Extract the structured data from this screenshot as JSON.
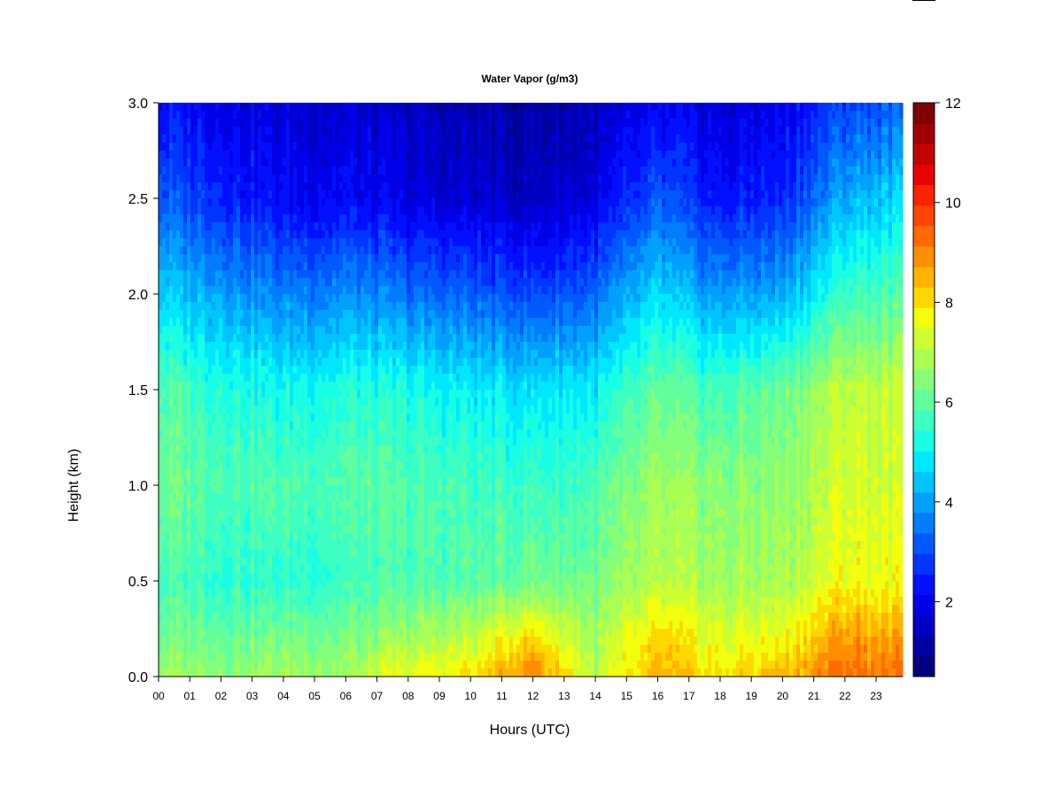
{
  "chart_data": {
    "type": "heatmap",
    "title": "Water Vapor (g/m3)",
    "xlabel": "Hours (UTC)",
    "ylabel": "Height (km)",
    "x_ticks": [
      "00",
      "01",
      "02",
      "03",
      "04",
      "05",
      "06",
      "07",
      "08",
      "09",
      "10",
      "11",
      "12",
      "13",
      "14",
      "15",
      "16",
      "17",
      "18",
      "19",
      "20",
      "21",
      "22",
      "23"
    ],
    "y_ticks": [
      "0.0",
      "0.5",
      "1.0",
      "1.5",
      "2.0",
      "2.5",
      "3.0"
    ],
    "xlim": [
      0,
      24
    ],
    "ylim": [
      0,
      3.0
    ],
    "colorbar": {
      "range": [
        0.5,
        12
      ],
      "tick_labels": [
        "2",
        "4",
        "6",
        "8",
        "10",
        "12"
      ],
      "tick_values": [
        2,
        4,
        6,
        8,
        10,
        12
      ],
      "levels": [
        0.5,
        1.0,
        1.5,
        2.0,
        2.5,
        3.0,
        3.5,
        4.0,
        4.5,
        5.0,
        5.5,
        6.0,
        6.5,
        7.0,
        7.5,
        8.0,
        8.5,
        9.0,
        9.5,
        10.0,
        10.5,
        11.0,
        11.5,
        12.0
      ],
      "colors": [
        "#00007F",
        "#0000A0",
        "#0000C4",
        "#0000E8",
        "#0010FF",
        "#0034FF",
        "#0058FF",
        "#007CFF",
        "#00A0FF",
        "#00C4FF",
        "#00E8FF",
        "#18FFE6",
        "#3DFFC2",
        "#61FF9E",
        "#85FF7A",
        "#AAFF55",
        "#CEFF31",
        "#F2FF0D",
        "#FFD800",
        "#FFB400",
        "#FF8F00",
        "#FF6B00",
        "#FF4600",
        "#FF2200",
        "#E80000",
        "#C40000",
        "#A00000",
        "#7F0000"
      ]
    },
    "profiles_km": [
      {
        "hour": 0,
        "h_km": [
          0.0,
          0.15,
          0.5,
          1.0,
          1.5,
          2.0,
          2.5,
          3.0
        ],
        "value": [
          7.6,
          7.1,
          6.5,
          7.0,
          6.6,
          5.0,
          3.3,
          2.3
        ]
      },
      {
        "hour": 2,
        "h_km": [
          0.0,
          0.15,
          0.5,
          1.0,
          1.5,
          2.0,
          2.5,
          3.0
        ],
        "value": [
          7.5,
          7.1,
          6.1,
          6.6,
          6.0,
          4.4,
          2.6,
          1.8
        ]
      },
      {
        "hour": 4,
        "h_km": [
          0.0,
          0.15,
          0.5,
          1.0,
          1.5,
          2.0,
          2.5,
          3.0
        ],
        "value": [
          7.7,
          7.2,
          6.0,
          6.5,
          5.6,
          3.8,
          2.0,
          1.5
        ]
      },
      {
        "hour": 6,
        "h_km": [
          0.0,
          0.15,
          0.5,
          1.0,
          1.5,
          2.0,
          2.5,
          3.0
        ],
        "value": [
          7.7,
          7.2,
          6.2,
          6.6,
          5.9,
          4.0,
          2.0,
          1.4
        ]
      },
      {
        "hour": 8,
        "h_km": [
          0.0,
          0.15,
          0.5,
          1.0,
          1.5,
          2.0,
          2.5,
          3.0
        ],
        "value": [
          8.6,
          7.9,
          6.4,
          6.5,
          5.7,
          3.6,
          1.6,
          1.2
        ]
      },
      {
        "hour": 10,
        "h_km": [
          0.0,
          0.15,
          0.5,
          1.0,
          1.5,
          2.0,
          2.5,
          3.0
        ],
        "value": [
          9.1,
          8.3,
          6.6,
          6.3,
          5.4,
          3.3,
          1.4,
          0.9
        ]
      },
      {
        "hour": 12,
        "h_km": [
          0.0,
          0.15,
          0.5,
          1.0,
          1.5,
          2.0,
          2.5,
          3.0
        ],
        "value": [
          10.6,
          9.6,
          7.0,
          6.2,
          5.2,
          3.0,
          1.2,
          0.8
        ]
      },
      {
        "hour": 14,
        "h_km": [
          0.0,
          0.15,
          0.5,
          1.0,
          1.5,
          2.0,
          2.5,
          3.0
        ],
        "value": [
          7.9,
          7.6,
          7.0,
          6.4,
          5.4,
          3.4,
          1.6,
          1.1
        ]
      },
      {
        "hour": 16,
        "h_km": [
          0.0,
          0.15,
          0.5,
          1.0,
          1.5,
          2.0,
          2.5,
          3.0
        ],
        "value": [
          9.7,
          9.4,
          7.8,
          7.5,
          6.7,
          5.0,
          3.1,
          1.8
        ]
      },
      {
        "hour": 18,
        "h_km": [
          0.0,
          0.15,
          0.5,
          1.0,
          1.5,
          2.0,
          2.5,
          3.0
        ],
        "value": [
          9.0,
          8.6,
          7.6,
          7.3,
          6.3,
          4.1,
          2.2,
          1.5
        ]
      },
      {
        "hour": 20,
        "h_km": [
          0.0,
          0.15,
          0.5,
          1.0,
          1.5,
          2.0,
          2.5,
          3.0
        ],
        "value": [
          9.8,
          8.9,
          7.7,
          7.4,
          6.9,
          4.4,
          2.5,
          1.8
        ]
      },
      {
        "hour": 22,
        "h_km": [
          0.0,
          0.15,
          0.5,
          1.0,
          1.5,
          2.0,
          2.5,
          3.0
        ],
        "value": [
          10.8,
          10.3,
          8.8,
          8.4,
          8.1,
          6.3,
          4.5,
          2.9
        ]
      },
      {
        "hour": 24,
        "h_km": [
          0.0,
          0.15,
          0.5,
          1.0,
          1.5,
          2.0,
          2.5,
          3.0
        ],
        "value": [
          10.4,
          10.0,
          8.6,
          8.2,
          8.0,
          6.5,
          5.0,
          3.2
        ]
      }
    ]
  }
}
